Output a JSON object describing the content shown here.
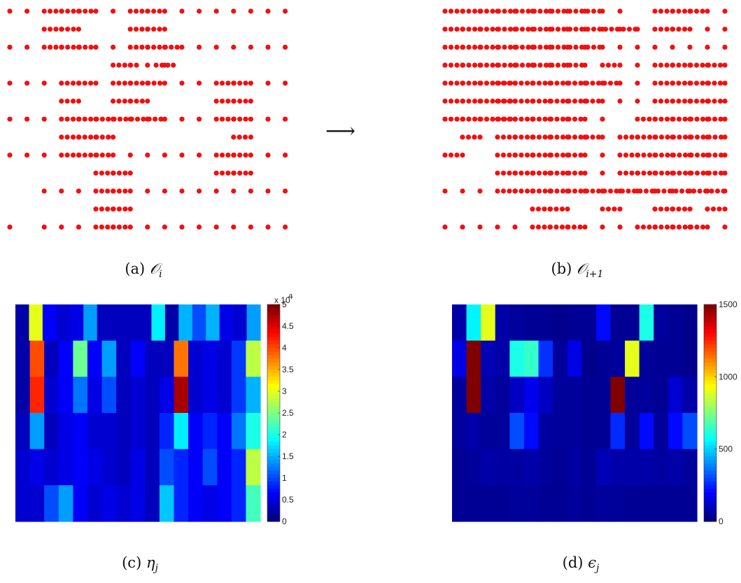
{
  "captions": {
    "a": {
      "label": "(a)",
      "math": "𝒪",
      "sub": "i"
    },
    "b": {
      "label": "(b)",
      "math": "𝒪",
      "sub": "i+1"
    },
    "c": {
      "label": "(c)",
      "math": "η",
      "sub": "j"
    },
    "d": {
      "label": "(d)",
      "math": "ϵ",
      "sub": "j"
    }
  },
  "arrow": "⟶",
  "colors": {
    "dot": "#f01010",
    "text": "#111111"
  },
  "chart_data": [
    {
      "type": "scatter",
      "id": "a",
      "marker": "red-dot",
      "columns": 16,
      "rows": [
        {
          "cols": [
            0,
            1,
            2,
            3,
            4,
            5,
            6,
            7,
            8,
            9,
            10,
            11,
            12,
            13,
            14,
            15,
            16
          ],
          "dense": [
            [
              2,
              5
            ],
            [
              7,
              9
            ]
          ]
        },
        {
          "cols": [
            2,
            3,
            4,
            7,
            8,
            9
          ],
          "dense": [
            [
              2,
              4
            ],
            [
              7,
              9
            ]
          ]
        },
        {
          "cols": [
            0,
            1,
            2,
            3,
            4,
            5,
            6,
            7,
            8,
            9,
            10,
            11,
            12,
            13,
            14,
            15,
            16
          ],
          "dense": [
            [
              2,
              5
            ],
            [
              7,
              10
            ]
          ]
        },
        {
          "cols": [
            6,
            7,
            8,
            8.5,
            9,
            9.5
          ],
          "dense": [
            [
              6,
              7.5
            ],
            [
              8.5,
              9.5
            ]
          ]
        },
        {
          "cols": [
            0,
            1,
            2,
            3,
            4,
            5,
            6,
            7,
            8,
            9,
            10,
            11,
            12,
            13,
            14,
            15,
            16
          ],
          "dense": [
            [
              3,
              5
            ],
            [
              6,
              9
            ],
            [
              12,
              14
            ]
          ]
        },
        {
          "cols": [
            3,
            4,
            6,
            7,
            8,
            12,
            13,
            14
          ],
          "dense": [
            [
              3,
              4
            ],
            [
              6,
              8
            ],
            [
              12,
              14
            ]
          ]
        },
        {
          "cols": [
            0,
            1,
            2,
            3,
            4,
            5,
            6,
            7,
            8,
            9,
            10,
            11,
            12,
            13,
            14,
            15,
            16
          ],
          "dense": [
            [
              3,
              9
            ],
            [
              12,
              14
            ]
          ]
        },
        {
          "cols": [
            3,
            4,
            5,
            6,
            13,
            14
          ],
          "dense": [
            [
              3,
              6
            ],
            [
              13,
              14
            ]
          ]
        },
        {
          "cols": [
            0,
            1,
            2,
            3,
            4,
            5,
            6,
            7,
            8,
            9,
            10,
            11,
            12,
            13,
            14,
            15,
            16
          ],
          "dense": [
            [
              3,
              6
            ],
            [
              12,
              14
            ]
          ]
        },
        {
          "cols": [
            5,
            6,
            7,
            12,
            13,
            14
          ],
          "dense": [
            [
              5,
              7
            ],
            [
              12,
              14
            ]
          ]
        },
        {
          "cols": [
            2,
            3,
            4,
            5,
            6,
            7,
            8,
            9,
            10,
            11,
            12,
            13,
            14,
            15,
            16
          ],
          "dense": [
            [
              5,
              7
            ]
          ]
        },
        {
          "cols": [
            5,
            6,
            7
          ],
          "dense": [
            [
              5,
              7
            ]
          ]
        },
        {
          "cols": [
            0,
            2,
            3,
            4,
            5,
            6,
            7,
            8,
            9,
            10,
            11,
            12,
            13,
            14,
            15,
            16
          ],
          "dense": [
            [
              5,
              7
            ]
          ]
        }
      ]
    },
    {
      "type": "scatter",
      "id": "b",
      "marker": "red-dot",
      "columns": 16,
      "rows": [
        {
          "cols": [
            0,
            1,
            2,
            3,
            4,
            5,
            6,
            7,
            8,
            9,
            10,
            12,
            13,
            14,
            15,
            16
          ],
          "dense": [
            [
              0,
              9
            ],
            [
              12,
              15
            ]
          ]
        },
        {
          "cols": [
            0,
            1,
            2,
            3,
            4,
            5,
            6,
            7,
            8,
            9,
            10,
            11,
            12,
            13,
            14,
            15,
            16
          ],
          "dense": [
            [
              0,
              11
            ],
            [
              12,
              14
            ]
          ]
        },
        {
          "cols": [
            0,
            1,
            2,
            3,
            4,
            5,
            6,
            7,
            8,
            9,
            10,
            11,
            12,
            13,
            14,
            15,
            16
          ],
          "dense": [
            [
              0,
              9
            ]
          ]
        },
        {
          "cols": [
            0,
            1,
            2,
            3,
            4,
            5,
            6,
            7,
            8,
            9,
            10,
            11,
            12,
            13,
            14,
            15,
            16
          ],
          "dense": [
            [
              0,
              8
            ],
            [
              9,
              10
            ],
            [
              12,
              16
            ]
          ]
        },
        {
          "cols": [
            0,
            1,
            2,
            3,
            4,
            5,
            6,
            7,
            8,
            9,
            10,
            11,
            12,
            13,
            14,
            15,
            16
          ],
          "dense": [
            [
              0,
              4
            ],
            [
              3,
              10
            ],
            [
              12,
              16
            ]
          ]
        },
        {
          "cols": [
            0,
            1,
            2,
            3,
            4,
            5,
            6,
            7,
            8,
            9,
            10,
            11,
            12,
            13,
            14,
            15,
            16
          ],
          "dense": [
            [
              0,
              4
            ],
            [
              3,
              9
            ],
            [
              12,
              16
            ]
          ]
        },
        {
          "cols": [
            0,
            1,
            2,
            3,
            4,
            5,
            6,
            7,
            8,
            9,
            11,
            12,
            13,
            14,
            15,
            16
          ],
          "dense": [
            [
              0,
              4
            ],
            [
              3,
              8
            ],
            [
              11,
              16
            ]
          ]
        },
        {
          "cols": [
            1,
            2,
            3,
            4,
            5,
            6,
            7,
            8,
            9,
            10,
            11,
            12,
            13,
            14,
            15,
            16
          ],
          "dense": [
            [
              1,
              2
            ],
            [
              3,
              9
            ],
            [
              10,
              16
            ]
          ]
        },
        {
          "cols": [
            0,
            1,
            3,
            4,
            5,
            6,
            7,
            8,
            9,
            10,
            11,
            12,
            13,
            14,
            15,
            16
          ],
          "dense": [
            [
              0,
              1
            ],
            [
              3,
              8
            ],
            [
              10,
              16
            ]
          ]
        },
        {
          "cols": [
            3,
            4,
            5,
            6,
            7,
            8,
            9,
            10,
            11,
            12,
            13,
            14,
            15,
            16
          ],
          "dense": [
            [
              3,
              8
            ],
            [
              10,
              16
            ]
          ]
        },
        {
          "cols": [
            0,
            1,
            2,
            3,
            4,
            5,
            6,
            7,
            8,
            9,
            10,
            11,
            12,
            13,
            14,
            15,
            16
          ],
          "dense": [
            [
              3,
              16
            ]
          ]
        },
        {
          "cols": [
            5,
            6,
            7,
            9,
            10,
            12,
            13,
            14,
            15,
            16
          ],
          "dense": [
            [
              5,
              7
            ],
            [
              9,
              10
            ],
            [
              12,
              14
            ],
            [
              15,
              16
            ]
          ]
        },
        {
          "cols": [
            0,
            1,
            2,
            3,
            4,
            5,
            6,
            7,
            8,
            9,
            10,
            11,
            12,
            13,
            14,
            15,
            16
          ],
          "dense": [
            [
              5,
              8
            ],
            [
              11,
              15
            ]
          ]
        }
      ]
    },
    {
      "type": "heatmap",
      "id": "c",
      "colorbar": {
        "min": 0,
        "max": 50000,
        "ticks": [
          "0",
          "0.5",
          "1",
          "1.5",
          "2",
          "2.5",
          "3",
          "3.5",
          "4",
          "4.5",
          "5"
        ],
        "multiplier": "x 10",
        "exponent": "4"
      },
      "grid": {
        "rows": 6,
        "cols": 16
      },
      "values": [
        [
          2,
          30,
          6,
          4,
          5,
          14,
          3,
          3,
          3,
          3,
          18,
          2,
          15,
          10,
          15,
          5,
          4,
          14
        ],
        [
          2,
          40,
          3,
          6,
          24,
          6,
          14,
          3,
          6,
          3,
          3,
          38,
          4,
          5,
          4,
          9,
          28
        ],
        [
          2,
          42,
          4,
          6,
          12,
          5,
          10,
          3,
          4,
          3,
          5,
          48,
          4,
          5,
          4,
          9,
          15
        ],
        [
          3,
          14,
          3,
          5,
          6,
          4,
          4,
          3,
          4,
          3,
          8,
          18,
          6,
          8,
          6,
          12,
          20
        ],
        [
          4,
          5,
          4,
          5,
          6,
          5,
          4,
          3,
          5,
          3,
          10,
          8,
          6,
          10,
          6,
          8,
          28
        ],
        [
          4,
          4,
          10,
          14,
          6,
          4,
          5,
          4,
          5,
          3,
          16,
          8,
          6,
          5,
          6,
          8,
          22
        ]
      ]
    },
    {
      "type": "heatmap",
      "id": "d",
      "colorbar": {
        "min": 0,
        "max": 1500,
        "ticks": [
          "0",
          "500",
          "1000",
          "1500"
        ]
      },
      "grid": {
        "rows": 6,
        "cols": 16
      },
      "values": [
        [
          60,
          550,
          900,
          60,
          40,
          30,
          30,
          20,
          30,
          30,
          200,
          30,
          30,
          600,
          40,
          30,
          20
        ],
        [
          150,
          1500,
          80,
          60,
          600,
          640,
          260,
          40,
          150,
          20,
          30,
          40,
          900,
          40,
          30,
          30,
          20
        ],
        [
          40,
          1500,
          60,
          40,
          100,
          160,
          100,
          40,
          40,
          30,
          30,
          1500,
          40,
          40,
          30,
          120,
          60
        ],
        [
          40,
          60,
          40,
          40,
          300,
          200,
          50,
          40,
          40,
          30,
          30,
          250,
          40,
          200,
          40,
          200,
          300
        ],
        [
          30,
          40,
          60,
          50,
          50,
          60,
          40,
          30,
          50,
          30,
          80,
          60,
          60,
          60,
          50,
          60,
          40
        ],
        [
          30,
          30,
          30,
          30,
          40,
          40,
          30,
          30,
          40,
          30,
          40,
          40,
          30,
          30,
          30,
          30,
          30
        ]
      ]
    }
  ]
}
